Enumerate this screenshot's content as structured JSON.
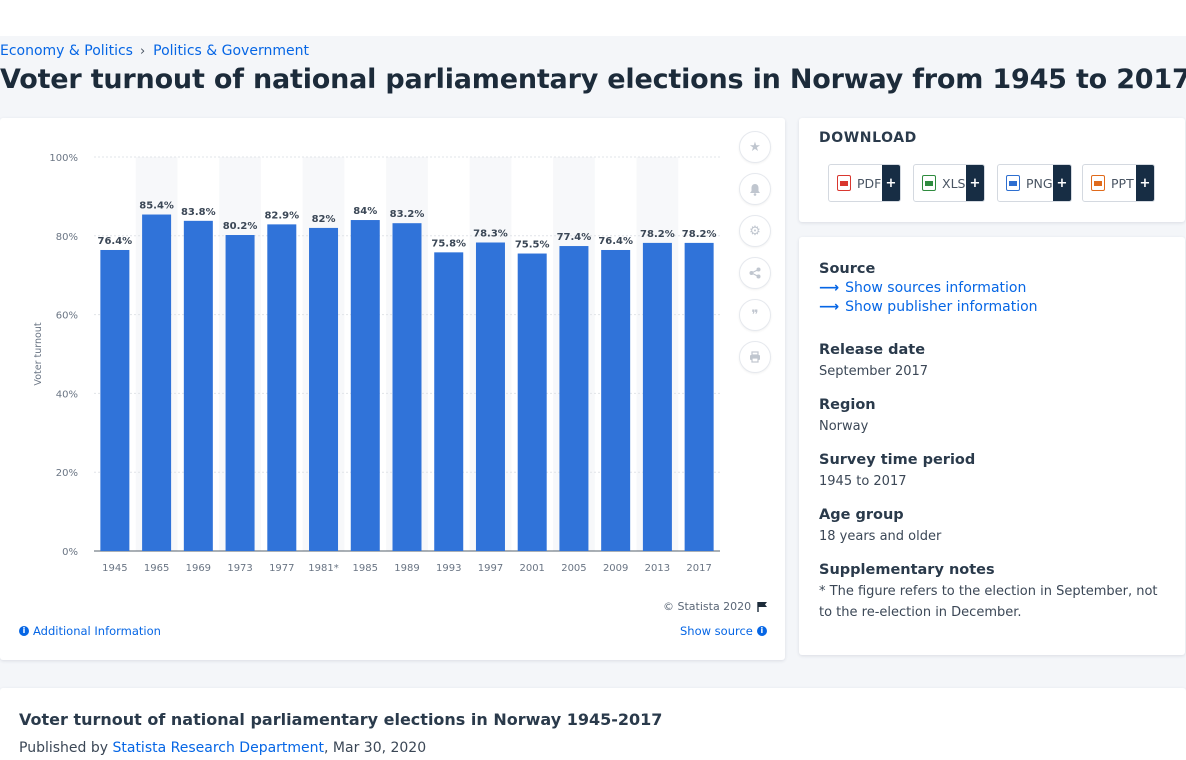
{
  "breadcrumb": {
    "item1": "Economy & Politics",
    "separator": "›",
    "item2": "Politics & Government"
  },
  "page_title": "Voter turnout of national parliamentary elections in Norway from 1945 to 2017",
  "chart_data": {
    "type": "bar",
    "categories": [
      "1945",
      "1965",
      "1969",
      "1973",
      "1977",
      "1981*",
      "1985",
      "1989",
      "1993",
      "1997",
      "2001",
      "2005",
      "2009",
      "2013",
      "2017"
    ],
    "values": [
      76.4,
      85.4,
      83.8,
      80.2,
      82.9,
      82,
      84,
      83.2,
      75.8,
      78.3,
      75.5,
      77.4,
      76.4,
      78.2,
      78.2
    ],
    "data_labels": [
      "76.4%",
      "85.4%",
      "83.8%",
      "80.2%",
      "82.9%",
      "82%",
      "84%",
      "83.2%",
      "75.8%",
      "78.3%",
      "75.5%",
      "77.4%",
      "76.4%",
      "78.2%",
      "78.2%"
    ],
    "ylabel": "Voter turnout",
    "ylim": [
      0,
      100
    ],
    "yticks": [
      "0%",
      "20%",
      "40%",
      "60%",
      "80%",
      "100%"
    ],
    "ytick_values": [
      0,
      20,
      40,
      60,
      80,
      100
    ],
    "grid": true,
    "bar_color": "#3073d9"
  },
  "chart_footer": {
    "copyright": "© Statista 2020",
    "additional_info": "Additional Information",
    "show_source": "Show source"
  },
  "tools": [
    "star-icon",
    "bell-icon",
    "gear-icon",
    "share-icon",
    "quote-icon",
    "print-icon"
  ],
  "download": {
    "heading": "DOWNLOAD",
    "buttons": [
      {
        "label": "PDF",
        "plus": "+",
        "color": "#d9372f"
      },
      {
        "label": "XLS",
        "plus": "+",
        "color": "#2e8b3e"
      },
      {
        "label": "PNG",
        "plus": "+",
        "color": "#2e6fd0"
      },
      {
        "label": "PPT",
        "plus": "+",
        "color": "#e06a1b"
      }
    ]
  },
  "meta": {
    "source_label": "Source",
    "show_sources": "Show sources information",
    "show_publisher": "Show publisher information",
    "release_label": "Release date",
    "release_value": "September 2017",
    "region_label": "Region",
    "region_value": "Norway",
    "survey_label": "Survey time period",
    "survey_value": "1945 to 2017",
    "age_label": "Age group",
    "age_value": "18 years and older",
    "notes_label": "Supplementary notes",
    "notes_value": "* The figure refers to the election in September, not to the re-election in December."
  },
  "bottom": {
    "title": "Voter turnout of national parliamentary elections in Norway 1945-2017",
    "published_prefix": "Published by",
    "publisher": "Statista Research Department",
    "date": ", Mar 30, 2020"
  }
}
